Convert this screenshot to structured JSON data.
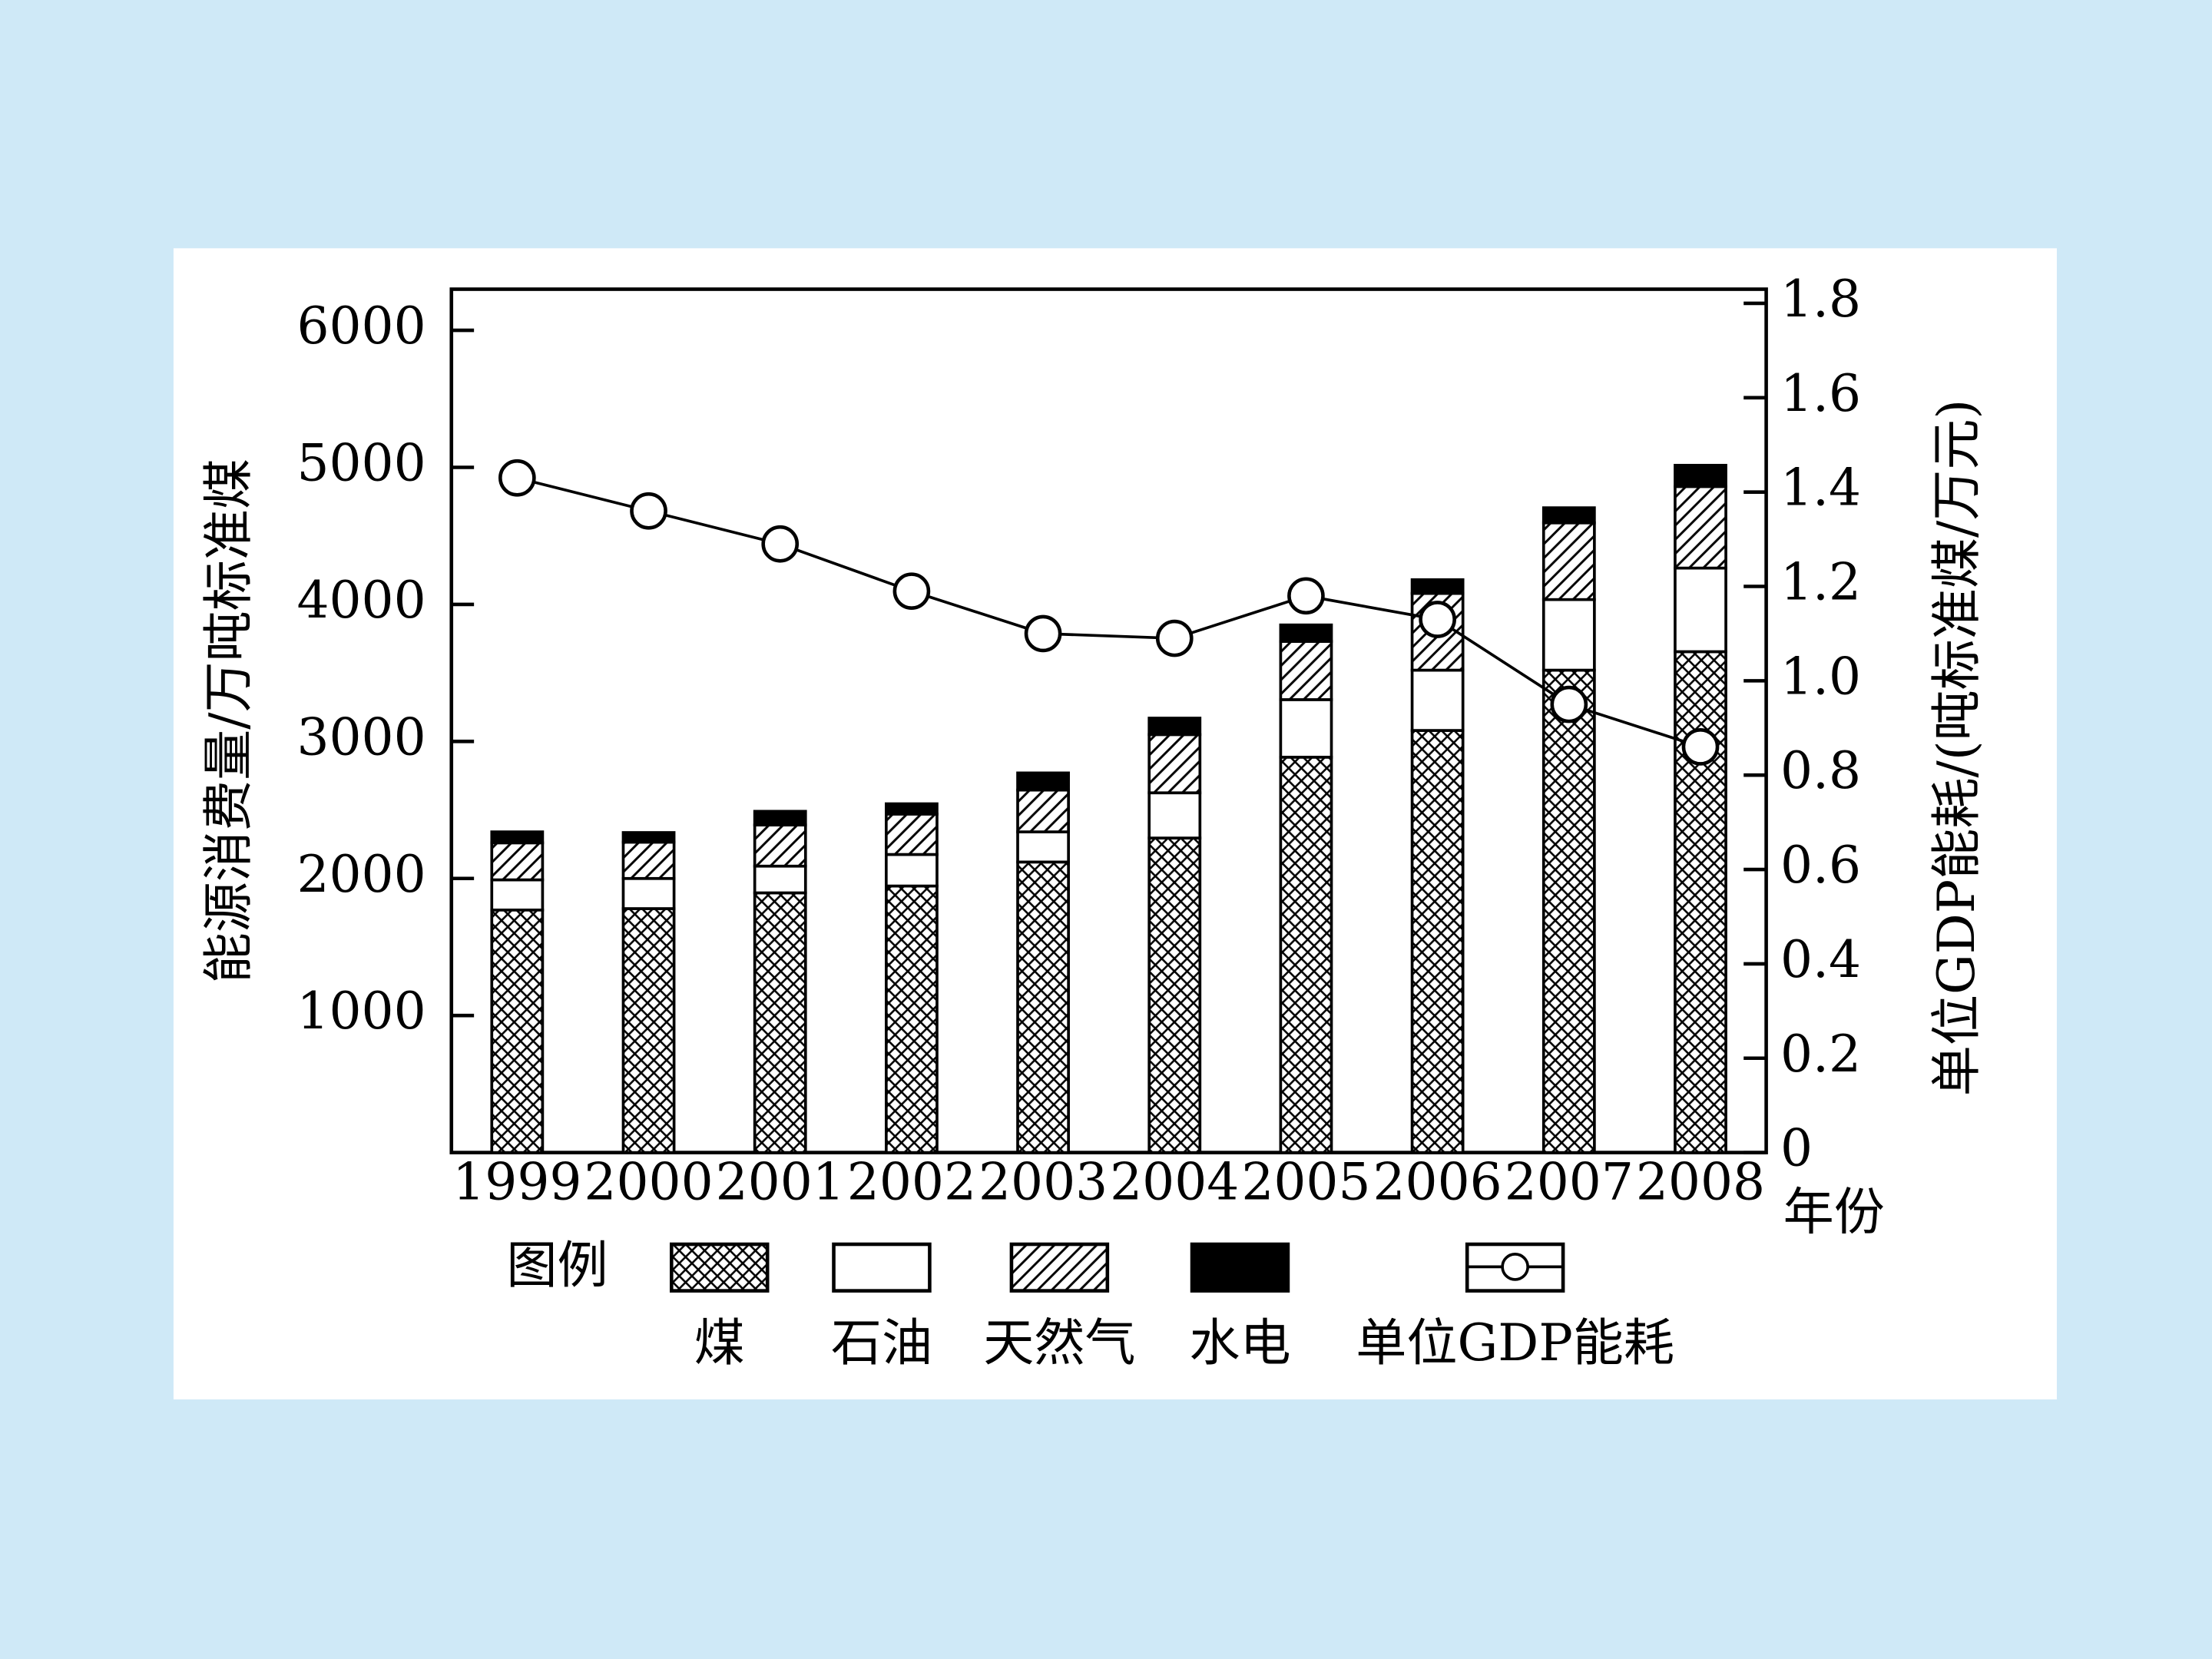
{
  "chart_data": {
    "type": "bar",
    "y_label": "能源消费量/万吨标准煤",
    "y2_label": "单位GDP能耗/(吨标准煤/万元)",
    "x_label": "年份",
    "legend_title": "图例",
    "categories": [
      "1999",
      "2000",
      "2001",
      "2002",
      "2003",
      "2004",
      "2005",
      "2006",
      "2007",
      "2008"
    ],
    "series": [
      {
        "name": "煤",
        "type": "bar",
        "pattern": "crosshatch",
        "color": "#000000",
        "values": [
          1770,
          1780,
          1895,
          1945,
          2120,
          2295,
          2885,
          3080,
          3520,
          3655
        ]
      },
      {
        "name": "石油",
        "type": "bar",
        "pattern": "solid",
        "color": "#ffffff",
        "values": [
          220,
          220,
          195,
          230,
          220,
          330,
          420,
          440,
          515,
          610
        ]
      },
      {
        "name": "天然气",
        "type": "bar",
        "pattern": "diagonal",
        "color": "#000000",
        "values": [
          270,
          265,
          300,
          295,
          305,
          425,
          425,
          560,
          560,
          595
        ]
      },
      {
        "name": "水电",
        "type": "bar",
        "pattern": "solid",
        "color": "#000000",
        "values": [
          80,
          70,
          100,
          75,
          125,
          120,
          120,
          100,
          110,
          155
        ]
      },
      {
        "name": "单位GDP能耗",
        "type": "line",
        "axis": "y2",
        "color": "#000000",
        "values": [
          1.43,
          1.36,
          1.29,
          1.19,
          1.1,
          1.09,
          1.18,
          1.13,
          0.95,
          0.86
        ]
      }
    ],
    "ylim": [
      0,
      6300
    ],
    "yticks": [
      1000,
      2000,
      3000,
      4000,
      5000,
      6000
    ],
    "y2lim": [
      0,
      1.83
    ],
    "y2ticks": [
      0,
      0.2,
      0.4,
      0.6,
      {
        "value": 0.8,
        "label": "0.8"
      },
      {
        "value": 1,
        "label": "1.0"
      },
      1.2,
      1.4,
      1.6,
      1.8
    ]
  }
}
